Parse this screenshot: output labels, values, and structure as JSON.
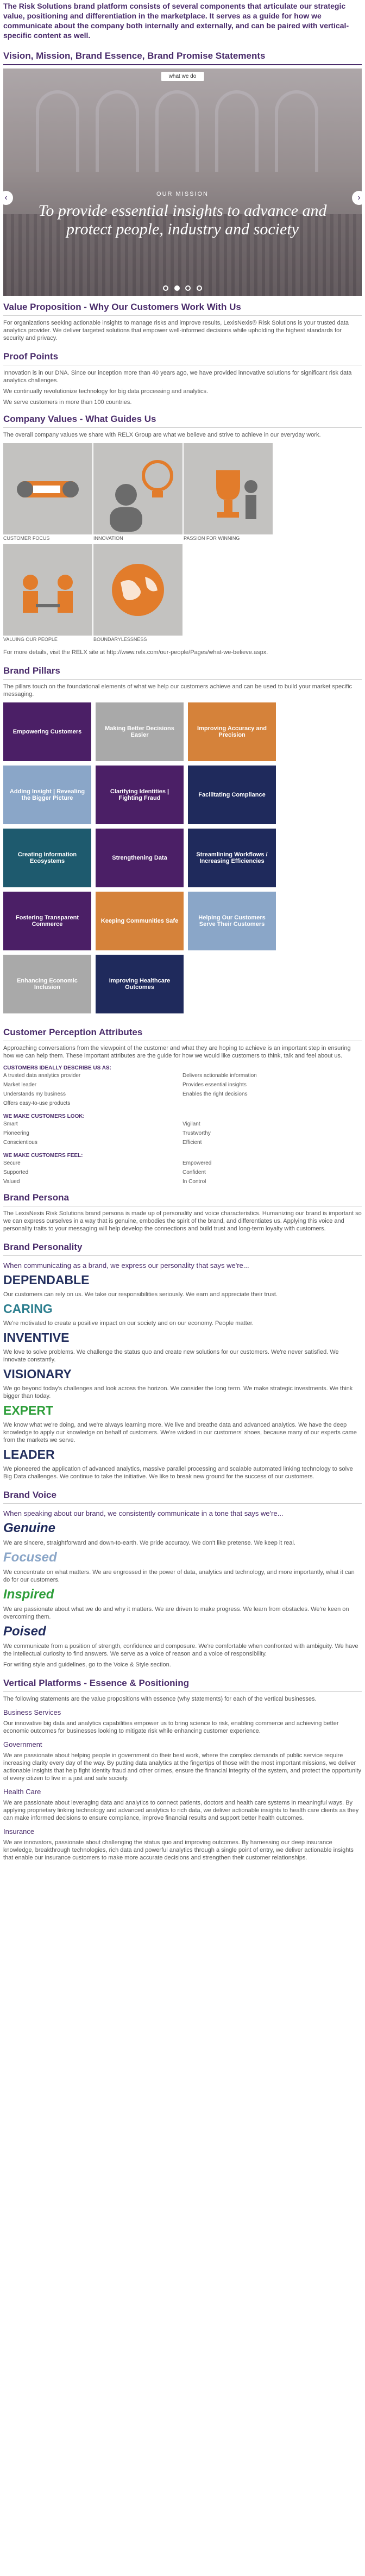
{
  "intro": "The Risk Solutions brand platform consists of several components that articulate our strategic value, positioning and differentiation in the marketplace. It serves as a guide for how we communicate about the company both internally and externally, and can be paired with vertical-specific content as well.",
  "vision": {
    "heading": "Vision, Mission, Brand Essence, Brand Promise Statements",
    "tab": "what we do",
    "label": "OUR MISSION",
    "statement": "To provide essential insights to advance and protect people, industry and society",
    "prev": "‹",
    "next": "›"
  },
  "value_prop": {
    "heading": "Value Proposition - Why Our Customers Work With Us",
    "body": "For organizations seeking actionable insights to manage risks and improve results, LexisNexis® Risk Solutions is your trusted data analytics provider. We deliver targeted solutions that empower well-informed decisions while upholding the highest standards for security and privacy."
  },
  "proof_points": {
    "heading": "Proof Points",
    "items": [
      "Innovation is in our DNA. Since our inception more than 40 years ago, we have provided innovative solutions for significant risk data analytics challenges.",
      "We continually revolutionize technology for big data processing and analytics.",
      "We serve customers in more than 100 countries."
    ]
  },
  "company_values": {
    "heading": "Company Values - What Guides Us",
    "body": "The overall company values we share with RELX Group are what we believe and strive to achieve in our everyday work.",
    "items": [
      {
        "label": "CUSTOMER FOCUS"
      },
      {
        "label": "INNOVATION"
      },
      {
        "label": "PASSION FOR WINNING"
      },
      {
        "label": ""
      },
      {
        "label": "VALUING OUR PEOPLE"
      },
      {
        "label": "BOUNDARYLESSNESS"
      }
    ],
    "footer": "For more details, visit the RELX site at http://www.relx.com/our-people/Pages/what-we-believe.aspx."
  },
  "pillars": {
    "heading": "Brand Pillars",
    "body": "The pillars touch on the foundational elements of what we help our customers achieve and can be used to build your market specific messaging.",
    "items": [
      {
        "label": "Empowering Customers",
        "color": "#4b1f66"
      },
      {
        "label": "Making Better Decisions Easier",
        "color": "#a9a9a9"
      },
      {
        "label": "Improving Accuracy and Precision",
        "color": "#d5823a"
      },
      {
        "label": "",
        "color": "#ffffff"
      },
      {
        "label": "Adding Insight | Revealing the Bigger Picture",
        "color": "#8aa6c8"
      },
      {
        "label": "Clarifying Identities | Fighting Fraud",
        "color": "#4b1f66"
      },
      {
        "label": "Facilitating Compliance",
        "color": "#1f2a5c"
      },
      {
        "label": "",
        "color": "#ffffff"
      },
      {
        "label": "Creating Information Ecosystems",
        "color": "#1e5a6e"
      },
      {
        "label": "Strengthening Data",
        "color": "#4b1f66"
      },
      {
        "label": "Streamlining Workflows / Increasing Efficiencies",
        "color": "#1f2a5c"
      },
      {
        "label": "",
        "color": "#ffffff"
      },
      {
        "label": "Fostering Transparent Commerce",
        "color": "#4b1f66"
      },
      {
        "label": "Keeping Communities Safe",
        "color": "#d5823a"
      },
      {
        "label": "Helping Our Customers Serve Their Customers",
        "color": "#8aa6c8"
      },
      {
        "label": "",
        "color": "#ffffff"
      },
      {
        "label": "Enhancing Economic Inclusion",
        "color": "#a9a9a9"
      },
      {
        "label": "Improving Healthcare Outcomes",
        "color": "#1f2a5c"
      }
    ]
  },
  "perception": {
    "heading": "Customer Perception Attributes",
    "body": "Approaching conversations from the viewpoint of the customer and what they are hoping to achieve is an important step in ensuring how we can help them. These important attributes are the guide for how we would like customers to think, talk and feel about us.",
    "describe_h": "CUSTOMERS IDEALLY DESCRIBE US AS:",
    "describe_left": [
      "A trusted data analytics provider",
      "Market leader",
      "Understands my business",
      "Offers easy-to-use products"
    ],
    "describe_right": [
      "Delivers actionable information",
      "Provides essential insights",
      "Enables the right decisions"
    ],
    "look_h": "WE MAKE CUSTOMERS LOOK:",
    "look_left": [
      "Smart",
      "Pioneering",
      "Conscientious"
    ],
    "look_right": [
      "Vigilant",
      "Trustworthy",
      "Efficient"
    ],
    "feel_h": "WE MAKE CUSTOMERS FEEL:",
    "feel_left": [
      "Secure",
      "Supported",
      "Valued"
    ],
    "feel_right": [
      "Empowered",
      "Confident",
      "In Control"
    ]
  },
  "persona": {
    "heading": "Brand Persona",
    "body": "The LexisNexis Risk Solutions brand persona is made up of personality and voice characteristics. Humanizing our brand is important so we can express ourselves in a way that is genuine, embodies the spirit of the brand, and differentiates us. Applying this voice and personality traits to your messaging will help develop the connections and build trust and long-term loyalty with customers."
  },
  "personality": {
    "heading": "Brand Personality",
    "lead": "When communicating as a brand, we express our personality that says we're...",
    "traits": [
      {
        "word": "DEPENDABLE",
        "desc": "Our customers can rely on us. We take our responsibilities seriously. We earn and appreciate their trust."
      },
      {
        "word": "CARING",
        "desc": "We're motivated to create a positive impact on our society and on our economy. People matter."
      },
      {
        "word": "INVENTIVE",
        "desc": "We love to solve problems. We challenge the status quo and create new solutions for our customers. We're never satisfied. We innovate constantly."
      },
      {
        "word": "VISIONARY",
        "desc": "We go beyond today's challenges and look across the horizon. We consider the long term. We make strategic investments. We think bigger than today."
      },
      {
        "word": "EXPERT",
        "desc": "We know what we're doing, and we're always learning more. We live and breathe data and advanced analytics. We have the deep knowledge to apply our knowledge on behalf of customers. We're wicked in our customers' shoes, because many of our experts came from the markets we serve."
      },
      {
        "word": "LEADER",
        "desc": "We pioneered the application of advanced analytics, massive parallel processing and scalable automated linking technology to solve Big Data challenges. We continue to take the initiative. We like to break new ground for the success of our customers."
      }
    ]
  },
  "voice": {
    "heading": "Brand Voice",
    "lead": "When speaking about our brand, we consistently communicate in a tone that says we're...",
    "tones": [
      {
        "word": "Genuine",
        "color": "#1f2a5c",
        "desc": "We are sincere, straightforward and down-to-earth. We pride accuracy. We don't like pretense. We keep it real."
      },
      {
        "word": "Focused",
        "color": "#8aa6c8",
        "desc": "We concentrate on what matters. We are engrossed in the power of data, analytics and technology, and more importantly, what it can do for our customers."
      },
      {
        "word": "Inspired",
        "color": "#2e9e3a",
        "desc": "We are passionate about what we do and why it matters. We are driven to make progress. We learn from obstacles. We're keen on overcoming them."
      },
      {
        "word": "Poised",
        "color": "#1f2a5c",
        "desc": "We communicate from a position of strength, confidence and composure. We're comfortable when confronted with ambiguity. We have the intellectual curiosity to find answers. We serve as a voice of reason and a voice of responsibility."
      }
    ],
    "footer": "For writing style and guidelines, go to the Voice & Style section."
  },
  "verticals": {
    "heading": "Vertical Platforms - Essence & Positioning",
    "body": "The following statements are the value propositions with essence (why statements) for each of the vertical businesses.",
    "items": [
      {
        "title": "Business Services",
        "desc": "Our innovative big data and analytics capabilities empower us to bring science to risk, enabling commerce and achieving better economic outcomes for businesses looking to mitigate risk while enhancing customer experience."
      },
      {
        "title": "Government",
        "desc": "We are passionate about helping people in government do their best work, where the complex demands of public service require increasing clarity every day of the way. By putting data analytics at the fingertips of those with the most important missions, we deliver actionable insights that help fight identity fraud and other crimes, ensure the financial integrity of the system, and protect the opportunity of every citizen to live in a just and safe society."
      },
      {
        "title": "Health Care",
        "desc": "We are passionate about leveraging data and analytics to connect patients, doctors and health care systems in meaningful ways. By applying proprietary linking technology and advanced analytics to rich data, we deliver actionable insights to health care clients as they can make informed decisions to ensure compliance, improve financial results and support better health outcomes."
      },
      {
        "title": "Insurance",
        "desc": "We are innovators, passionate about challenging the status quo and improving outcomes. By harnessing our deep insurance knowledge, breakthrough technologies, rich data and powerful analytics through a single point of entry, we deliver actionable insights that enable our insurance customers to make more accurate decisions and strengthen their customer relationships."
      }
    ]
  }
}
